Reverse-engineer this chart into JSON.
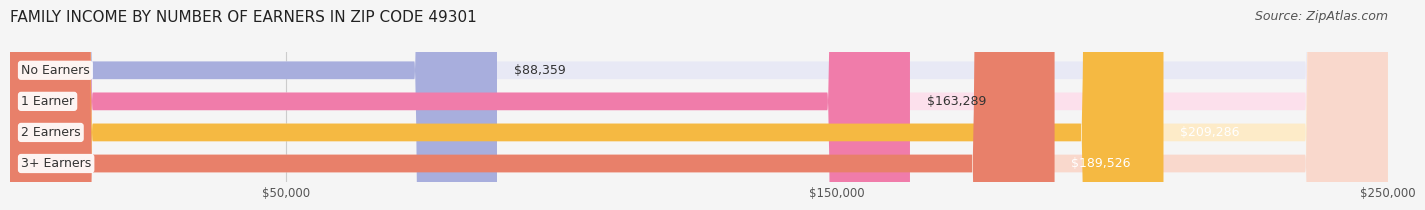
{
  "title": "FAMILY INCOME BY NUMBER OF EARNERS IN ZIP CODE 49301",
  "source_text": "Source: ZipAtlas.com",
  "categories": [
    "No Earners",
    "1 Earner",
    "2 Earners",
    "3+ Earners"
  ],
  "values": [
    88359,
    163289,
    209286,
    189526
  ],
  "bar_colors": [
    "#a8aedd",
    "#f07caa",
    "#f5b942",
    "#e8806a"
  ],
  "bar_bg_colors": [
    "#e8e9f5",
    "#fce0ec",
    "#fdebc8",
    "#f9d8cc"
  ],
  "label_colors": [
    "#333333",
    "#333333",
    "#ffffff",
    "#ffffff"
  ],
  "xlim": [
    0,
    250000
  ],
  "xticks": [
    50000,
    150000,
    250000
  ],
  "xtick_labels": [
    "$50,000",
    "$150,000",
    "$250,000"
  ],
  "background_color": "#f5f5f5",
  "bar_height": 0.55,
  "title_fontsize": 11,
  "source_fontsize": 9,
  "label_fontsize": 9,
  "category_fontsize": 9
}
